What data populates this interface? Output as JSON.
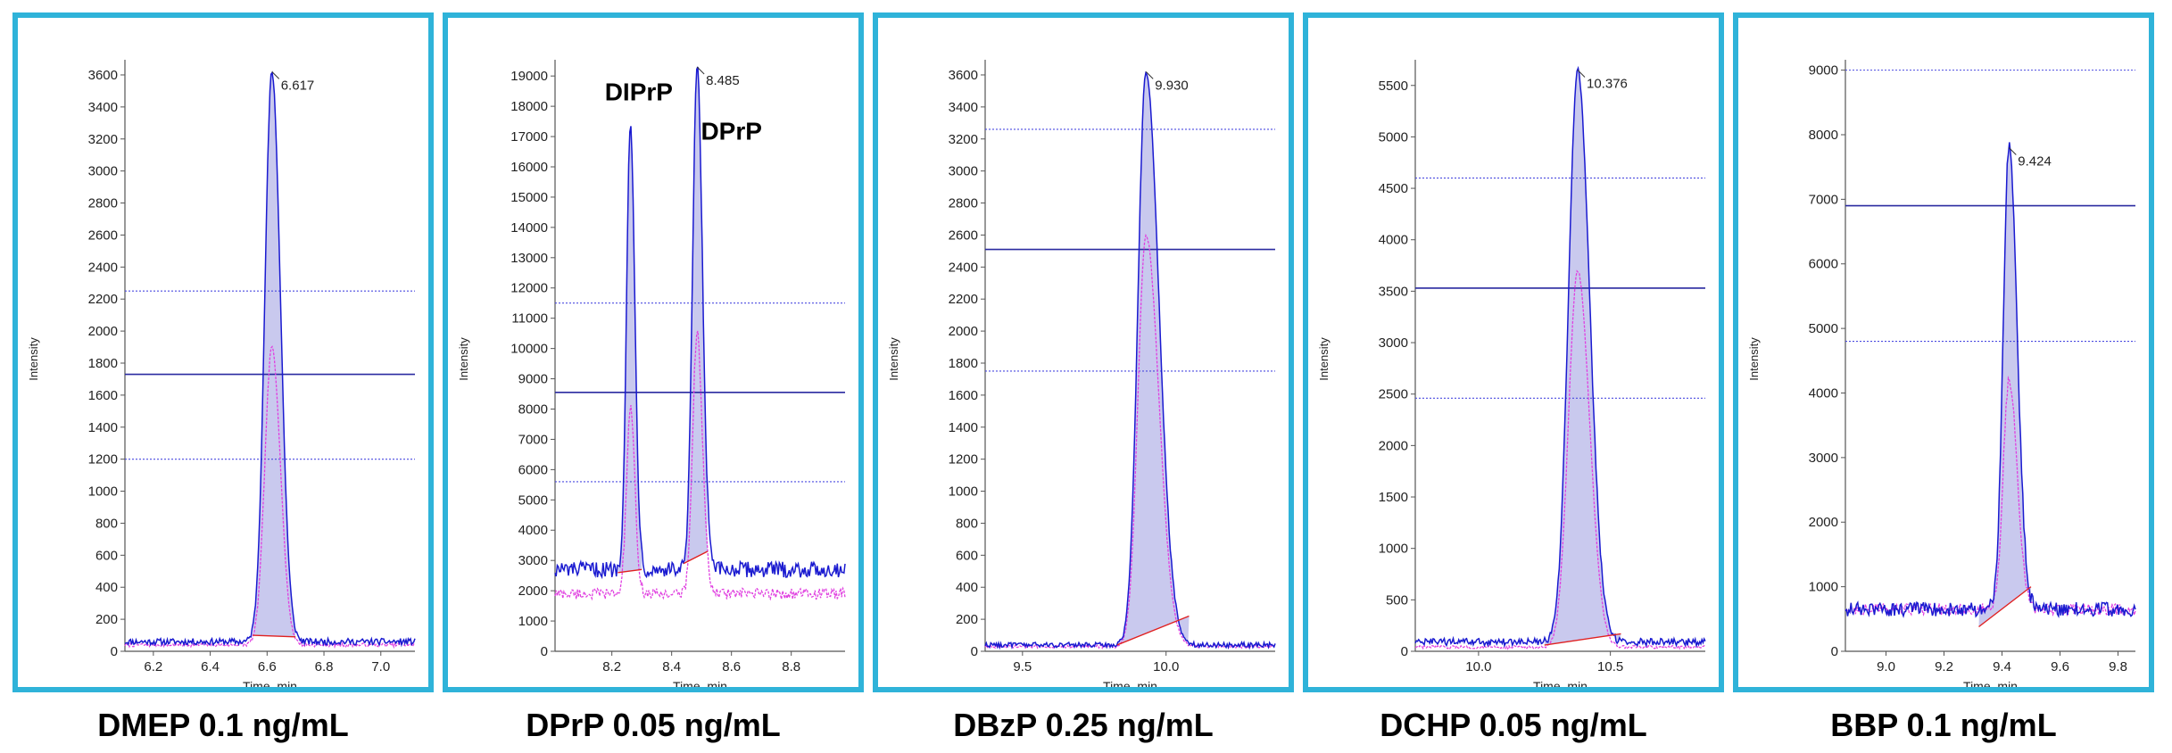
{
  "colors": {
    "frame": "#2fb3d9",
    "trace_primary": "#1a1ad0",
    "trace_secondary": "#e040e0",
    "baseline": "#e02020",
    "peak_fill": "#b7b7e8",
    "threshold_solid": "#2a2aa0",
    "threshold_dotted": "#4a4ae0"
  },
  "charts": [
    {
      "caption": "DMEP 0.1 ng/mL",
      "chart_data": {
        "type": "line",
        "xlabel": "Time, min",
        "ylabel": "Intensity",
        "xlim": [
          6.1,
          7.12
        ],
        "ylim": [
          0,
          3650
        ],
        "yticks": [
          0,
          200,
          400,
          600,
          800,
          1000,
          1200,
          1400,
          1600,
          1800,
          2000,
          2200,
          2400,
          2600,
          2800,
          3000,
          3200,
          3400,
          3600
        ],
        "xticks": [
          6.2,
          6.4,
          6.6,
          6.8,
          7.0
        ],
        "xtick_labels": [
          "6.2",
          "6.4",
          "6.6",
          "6.8",
          "7.0"
        ],
        "thresholds": [
          {
            "y": 2250,
            "style": "dotted"
          },
          {
            "y": 1730,
            "style": "solid"
          },
          {
            "y": 1200,
            "style": "dotted"
          }
        ],
        "peaks": [
          {
            "rt": 6.617,
            "height": 3620,
            "secondary_height": 1900,
            "label": "6.617",
            "start": 6.55,
            "end": 6.7,
            "base_start": 100,
            "base_end": 90,
            "width_l": 0.025,
            "width_r": 0.03
          }
        ],
        "baseline_level": 60,
        "secondary_baseline_level": 40,
        "noise": 20,
        "secondary_noise": 12,
        "annotations": []
      }
    },
    {
      "caption": "DPrP 0.05 ng/mL",
      "chart_data": {
        "type": "line",
        "xlabel": "Time, min",
        "ylabel": "Intensity",
        "xlim": [
          8.01,
          8.98
        ],
        "ylim": [
          0,
          19300
        ],
        "yticks": [
          0,
          1000,
          2000,
          3000,
          4000,
          5000,
          6000,
          7000,
          8000,
          9000,
          10000,
          11000,
          12000,
          13000,
          14000,
          15000,
          16000,
          17000,
          18000,
          19000
        ],
        "xticks": [
          8.2,
          8.4,
          8.6,
          8.8
        ],
        "xtick_labels": [
          "8.2",
          "8.4",
          "8.6",
          "8.8"
        ],
        "thresholds": [
          {
            "y": 11500,
            "style": "dotted"
          },
          {
            "y": 8550,
            "style": "solid"
          },
          {
            "y": 5600,
            "style": "dotted"
          }
        ],
        "peaks": [
          {
            "rt": 8.262,
            "height": 17300,
            "secondary_height": 8000,
            "label": "",
            "start": 8.22,
            "end": 8.3,
            "base_start": 2600,
            "base_end": 2700,
            "width_l": 0.013,
            "width_r": 0.015
          },
          {
            "rt": 8.485,
            "height": 19300,
            "secondary_height": 10500,
            "label": "8.485",
            "start": 8.44,
            "end": 8.52,
            "base_start": 2900,
            "base_end": 3300,
            "width_l": 0.015,
            "width_r": 0.018
          }
        ],
        "baseline_level": 2700,
        "secondary_baseline_level": 1900,
        "noise": 260,
        "secondary_noise": 180,
        "annotations": [
          {
            "text": "DIPrP",
            "x": 8.29,
            "y": 18200
          },
          {
            "text": "DPrP",
            "x": 8.6,
            "y": 16900
          }
        ]
      }
    },
    {
      "caption": "DBzP 0.25 ng/mL",
      "chart_data": {
        "type": "line",
        "xlabel": "Time, min",
        "ylabel": "Intensity",
        "xlim": [
          9.37,
          10.38
        ],
        "ylim": [
          0,
          3650
        ],
        "yticks": [
          0,
          200,
          400,
          600,
          800,
          1000,
          1200,
          1400,
          1600,
          1800,
          2000,
          2200,
          2400,
          2600,
          2800,
          3000,
          3200,
          3400,
          3600
        ],
        "xticks": [
          9.5,
          10.0
        ],
        "xtick_labels": [
          "9.5",
          "10.0"
        ],
        "thresholds": [
          {
            "y": 3260,
            "style": "dotted"
          },
          {
            "y": 2510,
            "style": "solid"
          },
          {
            "y": 1750,
            "style": "dotted"
          }
        ],
        "peaks": [
          {
            "rt": 9.93,
            "height": 3620,
            "secondary_height": 2600,
            "label": "9.930",
            "start": 9.83,
            "end": 10.08,
            "base_start": 40,
            "base_end": 220,
            "width_l": 0.028,
            "width_r": 0.045
          }
        ],
        "baseline_level": 40,
        "secondary_baseline_level": 30,
        "noise": 16,
        "secondary_noise": 10,
        "annotations": []
      }
    },
    {
      "caption": "DCHP 0.05 ng/mL",
      "chart_data": {
        "type": "line",
        "xlabel": "Time, min",
        "ylabel": "Intensity",
        "xlim": [
          9.76,
          10.86
        ],
        "ylim": [
          0,
          5680
        ],
        "yticks": [
          0,
          500,
          1000,
          1500,
          2000,
          2500,
          3000,
          3500,
          4000,
          4500,
          5000,
          5500
        ],
        "xticks": [
          10.0,
          10.5
        ],
        "xtick_labels": [
          "10.0",
          "10.5"
        ],
        "thresholds": [
          {
            "y": 4600,
            "style": "dotted"
          },
          {
            "y": 3530,
            "style": "solid"
          },
          {
            "y": 2460,
            "style": "dotted"
          }
        ],
        "peaks": [
          {
            "rt": 10.376,
            "height": 5650,
            "secondary_height": 3700,
            "label": "10.376",
            "start": 10.25,
            "end": 10.54,
            "base_start": 60,
            "base_end": 170,
            "width_l": 0.035,
            "width_r": 0.045
          }
        ],
        "baseline_level": 90,
        "secondary_baseline_level": 40,
        "noise": 35,
        "secondary_noise": 15,
        "annotations": []
      }
    },
    {
      "caption": "BBP 0.1 ng/mL",
      "chart_data": {
        "type": "line",
        "xlabel": "Time, min",
        "ylabel": "Intensity",
        "xlim": [
          8.86,
          9.86
        ],
        "ylim": [
          0,
          9050
        ],
        "yticks": [
          0,
          1000,
          2000,
          3000,
          4000,
          5000,
          6000,
          7000,
          8000,
          9000
        ],
        "xticks": [
          9.0,
          9.2,
          9.4,
          9.6,
          9.8
        ],
        "xtick_labels": [
          "9.0",
          "9.2",
          "9.4",
          "9.6",
          "9.8"
        ],
        "thresholds": [
          {
            "y": 9000,
            "style": "dotted"
          },
          {
            "y": 6900,
            "style": "solid"
          },
          {
            "y": 4800,
            "style": "dotted"
          }
        ],
        "peaks": [
          {
            "rt": 9.424,
            "height": 7800,
            "secondary_height": 4200,
            "label": "9.424",
            "start": 9.32,
            "end": 9.5,
            "base_start": 380,
            "base_end": 1000,
            "width_l": 0.02,
            "width_r": 0.028
          }
        ],
        "baseline_level": 650,
        "secondary_baseline_level": 650,
        "noise": 110,
        "secondary_noise": 90,
        "annotations": []
      }
    }
  ]
}
